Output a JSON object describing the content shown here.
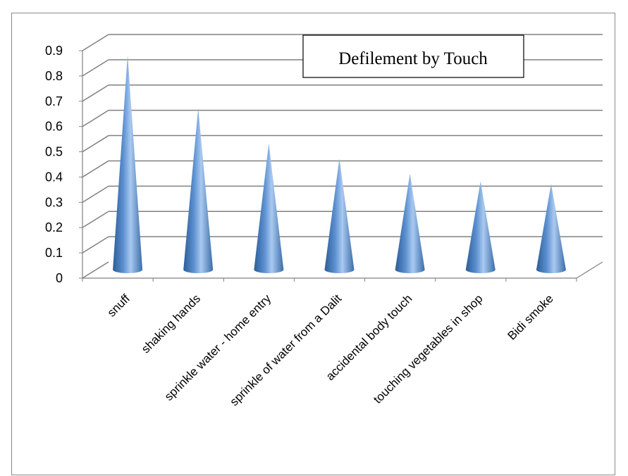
{
  "chart_data": {
    "type": "bar",
    "shape": "cone",
    "title": "Defilement by Touch",
    "xlabel": "",
    "ylabel": "",
    "categories": [
      "snuff",
      "shaking hands",
      "sprinkle water - home entry",
      "sprinkle of water from a Dalit",
      "accidental body touch",
      "touching vegetables in shop",
      "Bidi smoke"
    ],
    "values": [
      0.85,
      0.64,
      0.5,
      0.44,
      0.38,
      0.35,
      0.34
    ],
    "ylim": [
      0,
      0.9
    ],
    "yticks": [
      "0",
      "0.1",
      "0.2",
      "0.3",
      "0.4",
      "0.5",
      "0.6",
      "0.7",
      "0.8",
      "0.9"
    ],
    "grid": true,
    "legend": "none",
    "colors": {
      "cone_dark": "#2c5d95",
      "cone_mid": "#5b8fd0",
      "cone_light": "#a9c9f0",
      "grid": "#808080"
    }
  }
}
